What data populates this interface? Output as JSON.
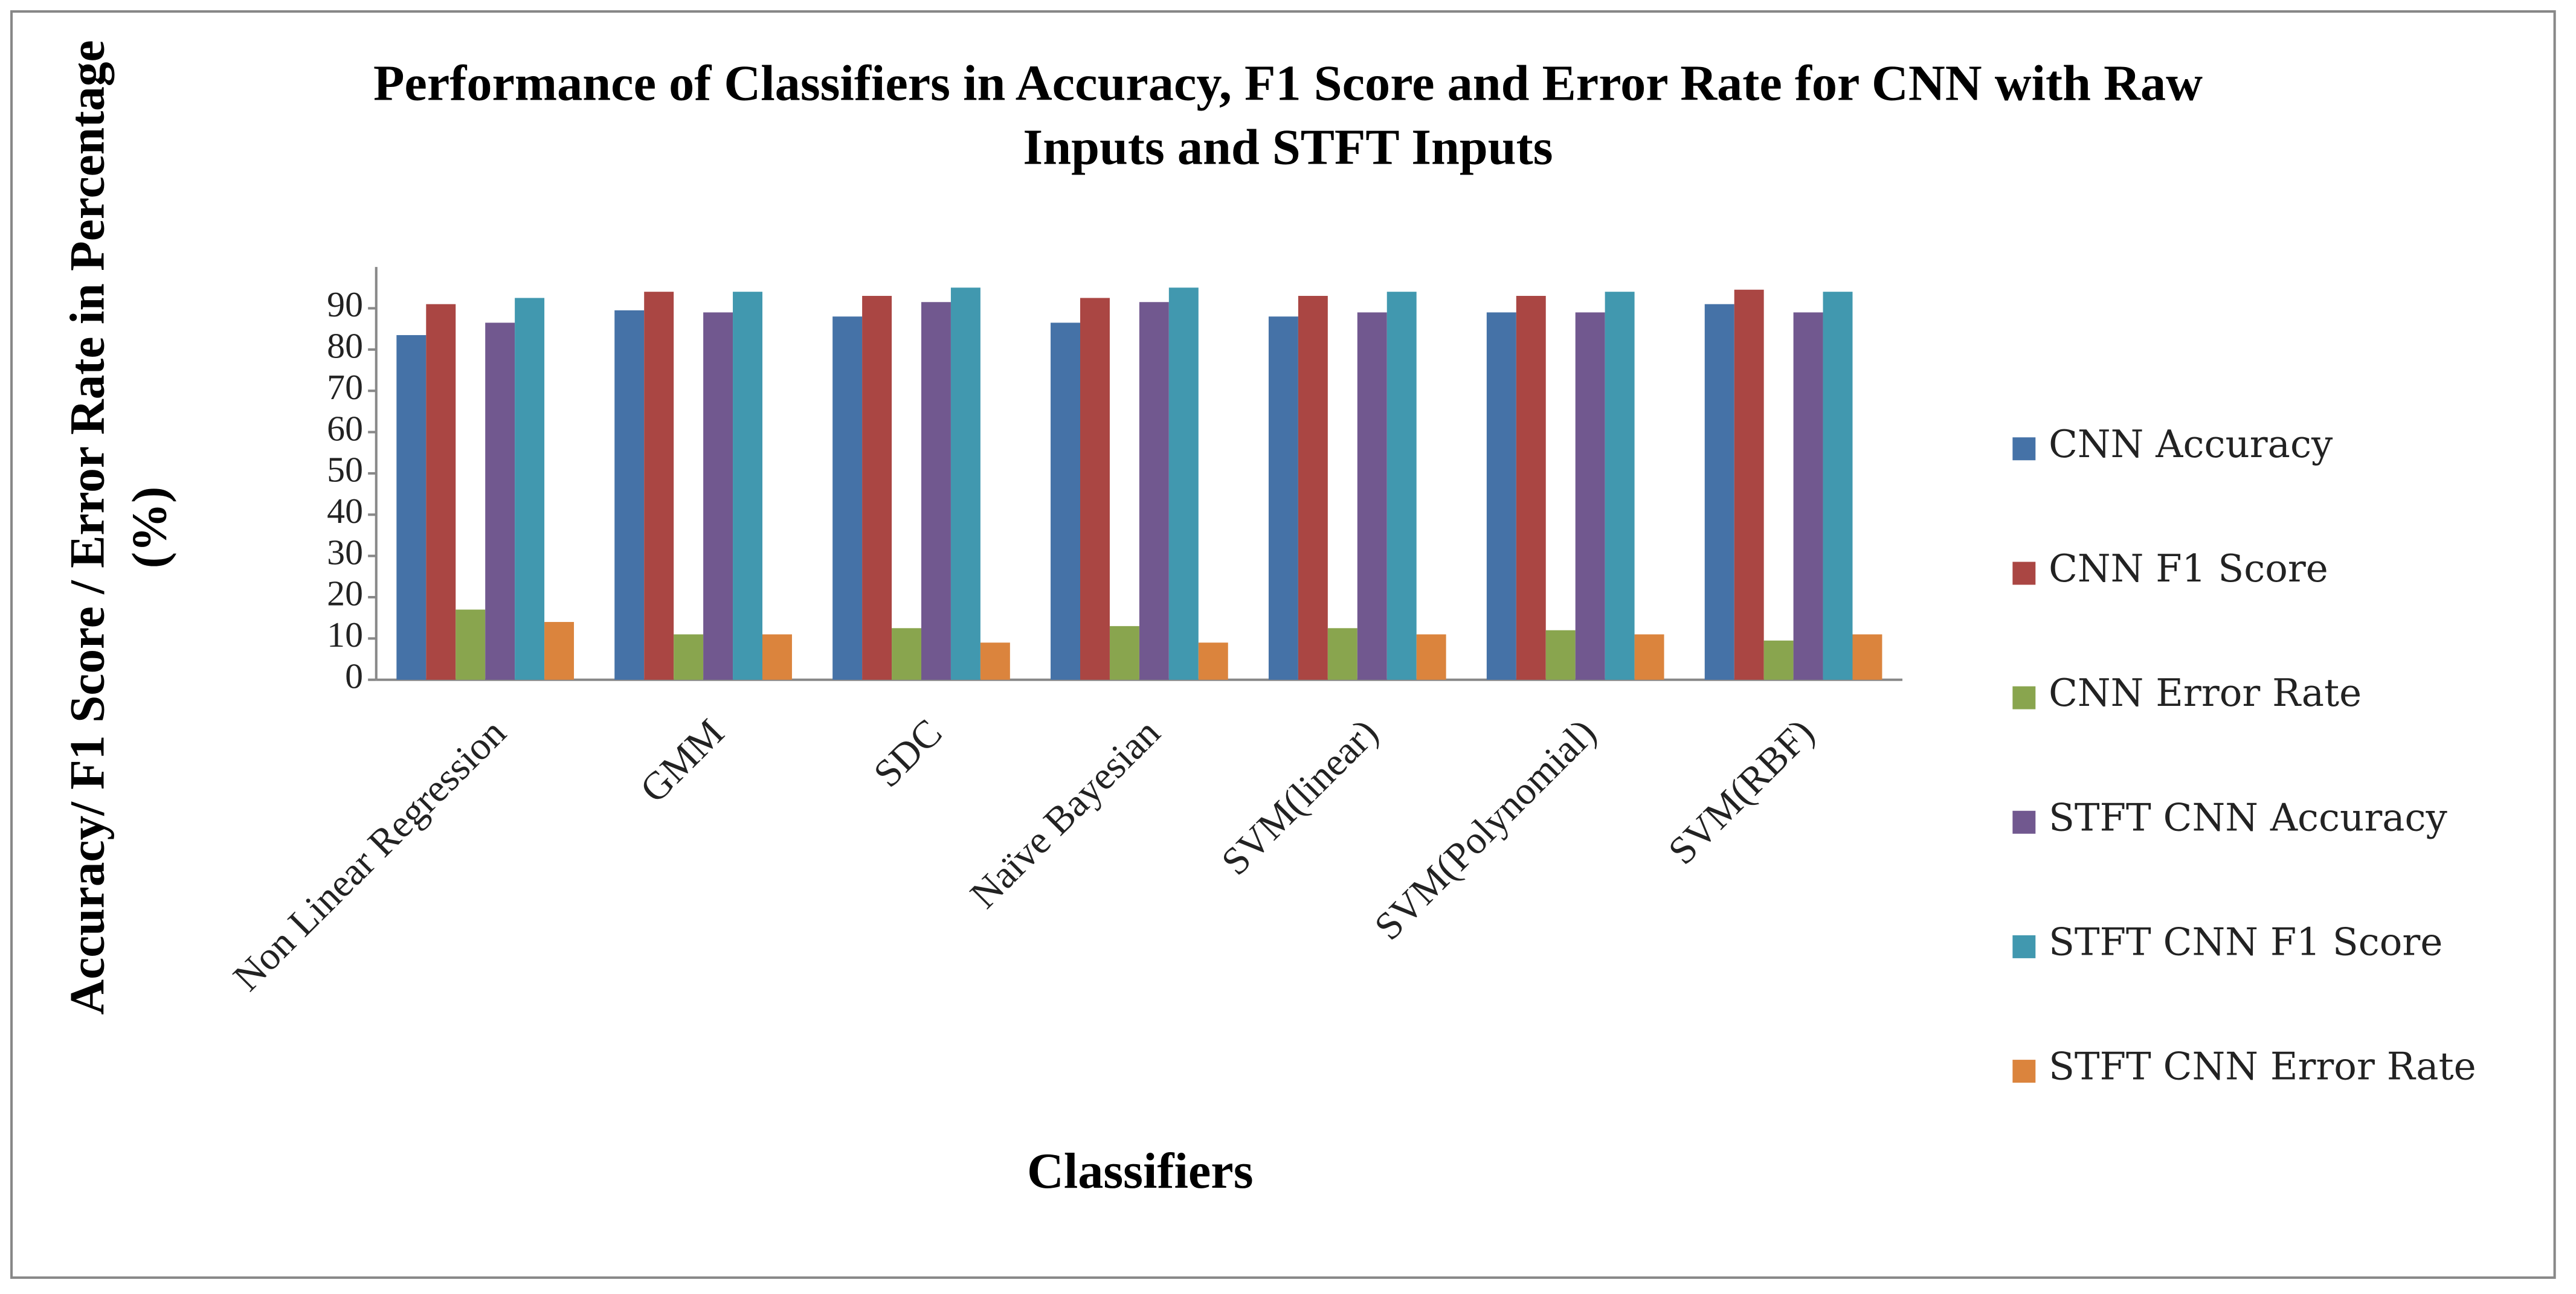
{
  "chart_data": {
    "type": "bar",
    "title": "Performance of Classifiers in  Accuracy, F1 Score and Error Rate for CNN with Raw Inputs and STFT Inputs",
    "x_label": "Classifiers",
    "y_label": "Accuracy/ F1 Score / Error Rate in Percentage (%)",
    "categories": [
      "Non Linear Regression",
      "GMM",
      "SDC",
      "Naïve Bayesian",
      "SVM(linear)",
      "SVM(Polynomial)",
      "SVM(RBF)"
    ],
    "series": [
      {
        "name": "CNN Accuracy",
        "color": "#4572a7",
        "values": [
          83.5,
          89.5,
          88,
          86.5,
          88,
          89,
          91
        ]
      },
      {
        "name": "CNN F1 Score",
        "color": "#aa4643",
        "values": [
          91,
          94,
          93,
          92.5,
          93,
          93,
          94.5
        ]
      },
      {
        "name": "CNN Error Rate",
        "color": "#89a54e",
        "values": [
          17,
          11,
          12.5,
          13,
          12.5,
          12,
          9.5
        ]
      },
      {
        "name": "STFT CNN Accuracy",
        "color": "#71588f",
        "values": [
          86.5,
          89,
          91.5,
          91.5,
          89,
          89,
          89
        ]
      },
      {
        "name": "STFT CNN F1 Score",
        "color": "#4198af",
        "values": [
          92.5,
          94,
          95,
          95,
          94,
          94,
          94
        ]
      },
      {
        "name": "STFT CNN Error Rate",
        "color": "#db843d",
        "values": [
          14,
          11,
          9,
          9,
          11,
          11,
          11
        ]
      }
    ],
    "ylim": [
      0,
      100
    ],
    "yticks": [
      0,
      10,
      20,
      30,
      40,
      50,
      60,
      70,
      80,
      90
    ],
    "grid": false,
    "legend": "right"
  }
}
